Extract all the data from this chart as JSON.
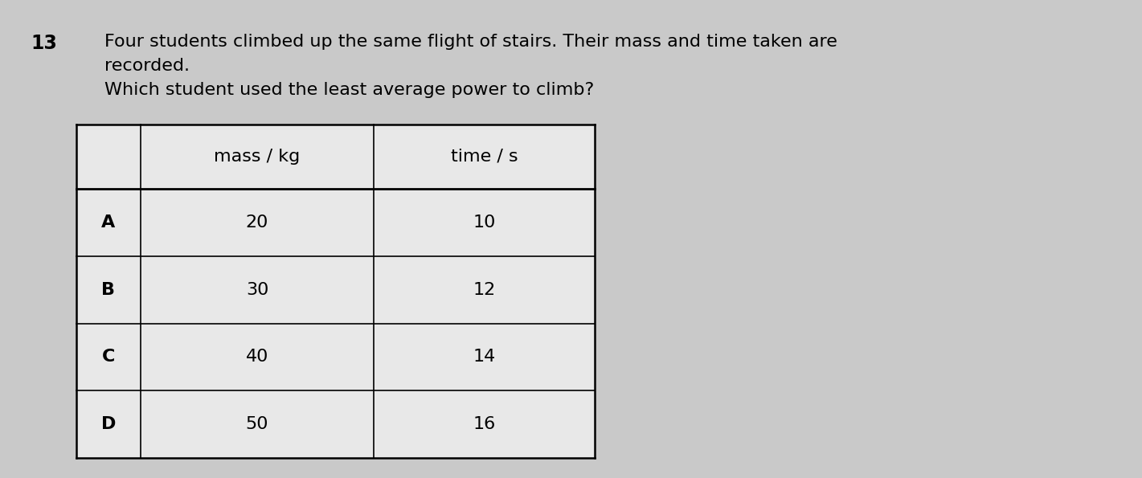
{
  "question_number": "13",
  "line1": "Four students climbed up the same flight of stairs. Their mass and time taken are",
  "line2": "recorded.",
  "line3": "Which student used the least average power to climb?",
  "background_color": "#c9c9c9",
  "table_rows": [
    [
      "A",
      "20",
      "10"
    ],
    [
      "B",
      "30",
      "12"
    ],
    [
      "C",
      "40",
      "14"
    ],
    [
      "D",
      "50",
      "16"
    ]
  ],
  "col_headers": [
    "mass / kg",
    "time / s"
  ],
  "cell_bg": "#e8e8e8",
  "line_color": "#000000",
  "text_color": "#000000",
  "qnum_fontsize": 17,
  "text_fontsize": 16,
  "table_fontsize": 16
}
